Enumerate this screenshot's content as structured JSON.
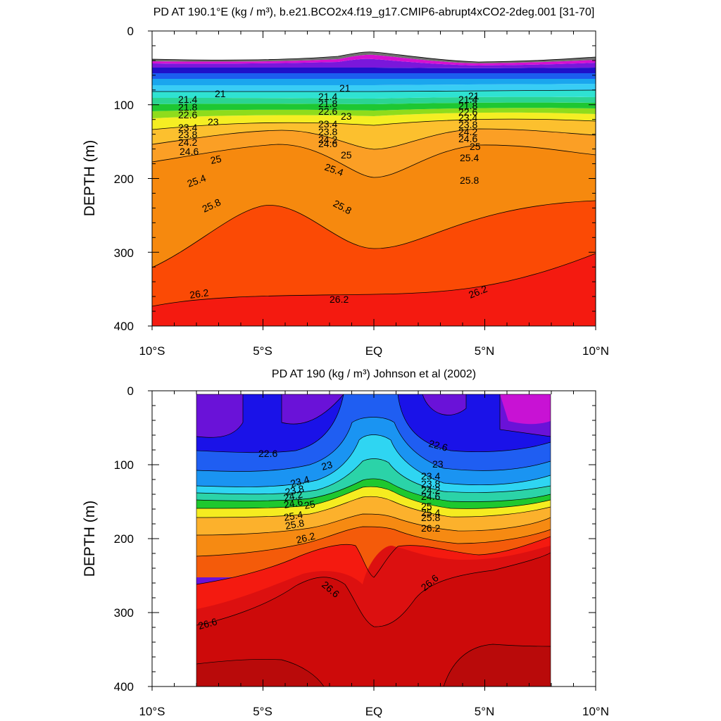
{
  "chart_data": [
    {
      "type": "contour",
      "title": "PD AT 190.1°E (kg / m³), b.e21.BCO2x4.f19_g17.CMIP6-abrupt4xCO2-2deg.001 [31-70]",
      "ylabel": "DEPTH (m)",
      "xlabel": "",
      "xlim": [
        -10,
        10
      ],
      "ylim": [
        400,
        0
      ],
      "x_ticks": [
        {
          "value": -10,
          "label": "10°S"
        },
        {
          "value": -5,
          "label": "5°S"
        },
        {
          "value": 0,
          "label": "EQ"
        },
        {
          "value": 5,
          "label": "5°N"
        },
        {
          "value": 10,
          "label": "10°N"
        }
      ],
      "y_ticks": [
        0,
        100,
        200,
        300,
        400
      ],
      "contour_levels": [
        "21",
        "21.4",
        "21.8",
        "22.2",
        "22.6",
        "23",
        "23.4",
        "23.8",
        "24.2",
        "24.6",
        "25",
        "25.4",
        "25.8",
        "26.2"
      ],
      "isopycnal_depths_m": {
        "lat": [
          -10,
          -8,
          -6,
          -4,
          -2,
          0,
          2,
          4,
          6,
          8,
          10
        ],
        "21": [
          83,
          85,
          86,
          85,
          80,
          72,
          78,
          87,
          87,
          86,
          82
        ],
        "22.6": [
          104,
          105,
          105,
          104,
          101,
          98,
          101,
          105,
          106,
          105,
          104
        ],
        "24.2": [
          145,
          148,
          150,
          150,
          150,
          148,
          150,
          150,
          150,
          148,
          145
        ],
        "25": [
          185,
          178,
          172,
          168,
          172,
          185,
          172,
          165,
          165,
          168,
          172
        ],
        "25.4": [
          205,
          195,
          185,
          182,
          190,
          210,
          190,
          182,
          182,
          185,
          190
        ],
        "25.8": [
          230,
          215,
          205,
          200,
          218,
          250,
          220,
          205,
          202,
          205,
          210
        ],
        "26.2": [
          372,
          360,
          355,
          357,
          362,
          358,
          365,
          340,
          310,
          300,
          305
        ]
      }
    },
    {
      "type": "contour",
      "title": "PD AT 190 (kg / m³) Johnson et al (2002)",
      "ylabel": "DEPTH (m)",
      "xlabel": "",
      "xlim": [
        -10,
        10
      ],
      "ylim": [
        400,
        0
      ],
      "data_lat_range": [
        -8,
        8
      ],
      "x_ticks": [
        {
          "value": -10,
          "label": "10°S"
        },
        {
          "value": -5,
          "label": "5°S"
        },
        {
          "value": 0,
          "label": "EQ"
        },
        {
          "value": 5,
          "label": "5°N"
        },
        {
          "value": 10,
          "label": "10°N"
        }
      ],
      "y_ticks": [
        0,
        100,
        200,
        300,
        400
      ],
      "contour_levels": [
        "22.6",
        "23",
        "23.4",
        "23.8",
        "24.2",
        "24.6",
        "25",
        "25.4",
        "25.8",
        "26.2",
        "26.6"
      ],
      "isopycnal_depths_m": {
        "lat": [
          -8,
          -6,
          -4,
          -2,
          0,
          2,
          4,
          6,
          8
        ],
        "22.6": [
          68,
          72,
          75,
          50,
          30,
          55,
          75,
          75,
          70
        ],
        "23.4": [
          105,
          110,
          120,
          100,
          80,
          110,
          120,
          110,
          95
        ],
        "24.6": [
          145,
          148,
          152,
          145,
          135,
          150,
          155,
          150,
          130
        ],
        "25.8": [
          210,
          195,
          185,
          185,
          195,
          190,
          185,
          185,
          165
        ],
        "26.6": [
          330,
          300,
          265,
          245,
          255,
          250,
          245,
          235,
          220
        ]
      }
    }
  ]
}
